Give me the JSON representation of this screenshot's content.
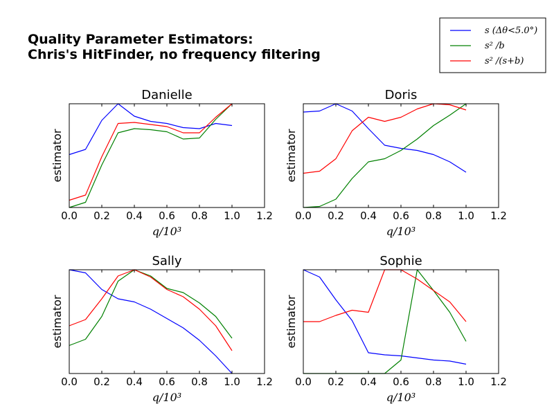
{
  "figure": {
    "title_line1": "Quality Parameter Estimators:",
    "title_line2": "Chris's HitFinder, no frequency filtering"
  },
  "legend": {
    "placement": "top-right",
    "entries": [
      {
        "label": "s (Δθ<5.0°)",
        "color": "#0000ff"
      },
      {
        "label": "s² /b",
        "color": "#008000"
      },
      {
        "label": "s² /(s+b)",
        "color": "#ff0000"
      }
    ]
  },
  "chart_data": [
    {
      "type": "line",
      "title": "Danielle",
      "xlabel": "q/10³",
      "ylabel": "estimator",
      "xlim": [
        0.0,
        1.2
      ],
      "ylim": [
        0,
        1
      ],
      "xticks": [
        "0.0",
        "0.2",
        "0.4",
        "0.6",
        "0.8",
        "1.0",
        "1.2"
      ],
      "grid": false,
      "x": [
        0.0,
        0.1,
        0.2,
        0.3,
        0.4,
        0.5,
        0.6,
        0.7,
        0.8,
        0.9,
        1.0
      ],
      "series": [
        {
          "color": "#0000ff",
          "values": [
            0.51,
            0.56,
            0.84,
            1.0,
            0.88,
            0.83,
            0.81,
            0.77,
            0.76,
            0.81,
            0.79
          ]
        },
        {
          "color": "#008000",
          "values": [
            0.0,
            0.05,
            0.41,
            0.72,
            0.76,
            0.75,
            0.73,
            0.66,
            0.67,
            0.85,
            1.0
          ]
        },
        {
          "color": "#ff0000",
          "values": [
            0.07,
            0.12,
            0.49,
            0.81,
            0.82,
            0.8,
            0.78,
            0.72,
            0.72,
            0.87,
            1.0
          ]
        }
      ]
    },
    {
      "type": "line",
      "title": "Doris",
      "xlabel": "q/10³",
      "ylabel": "estimator",
      "xlim": [
        0.0,
        1.2
      ],
      "ylim": [
        0,
        1
      ],
      "xticks": [
        "0.0",
        "0.2",
        "0.4",
        "0.6",
        "0.8",
        "1.0",
        "1.2"
      ],
      "grid": false,
      "x": [
        0.0,
        0.1,
        0.2,
        0.3,
        0.4,
        0.5,
        0.6,
        0.7,
        0.8,
        0.9,
        1.0
      ],
      "series": [
        {
          "color": "#0000ff",
          "values": [
            0.92,
            0.93,
            1.0,
            0.93,
            0.76,
            0.6,
            0.57,
            0.55,
            0.51,
            0.44,
            0.34
          ]
        },
        {
          "color": "#008000",
          "values": [
            0.0,
            0.01,
            0.08,
            0.28,
            0.44,
            0.47,
            0.55,
            0.66,
            0.79,
            0.89,
            1.0
          ]
        },
        {
          "color": "#ff0000",
          "values": [
            0.33,
            0.35,
            0.47,
            0.74,
            0.87,
            0.83,
            0.87,
            0.95,
            1.0,
            0.99,
            0.94
          ]
        }
      ]
    },
    {
      "type": "line",
      "title": "Sally",
      "xlabel": "q/10³",
      "ylabel": "estimator",
      "xlim": [
        0.0,
        1.2
      ],
      "ylim": [
        0,
        1
      ],
      "xticks": [
        "0.0",
        "0.2",
        "0.4",
        "0.6",
        "0.8",
        "1.0",
        "1.2"
      ],
      "grid": false,
      "x": [
        0.0,
        0.1,
        0.2,
        0.3,
        0.4,
        0.5,
        0.6,
        0.7,
        0.8,
        0.9,
        1.0
      ],
      "series": [
        {
          "color": "#0000ff",
          "values": [
            1.0,
            0.97,
            0.81,
            0.72,
            0.69,
            0.62,
            0.53,
            0.44,
            0.32,
            0.17,
            0.0
          ]
        },
        {
          "color": "#008000",
          "values": [
            0.27,
            0.33,
            0.55,
            0.89,
            1.0,
            0.94,
            0.82,
            0.78,
            0.68,
            0.55,
            0.34
          ]
        },
        {
          "color": "#ff0000",
          "values": [
            0.46,
            0.52,
            0.72,
            0.94,
            1.0,
            0.93,
            0.81,
            0.74,
            0.62,
            0.46,
            0.22
          ]
        }
      ]
    },
    {
      "type": "line",
      "title": "Sophie",
      "xlabel": "q/10³",
      "ylabel": "estimator",
      "xlim": [
        0.0,
        1.2
      ],
      "ylim": [
        0,
        1
      ],
      "xticks": [
        "0.0",
        "0.2",
        "0.4",
        "0.6",
        "0.8",
        "1.0",
        "1.2"
      ],
      "grid": false,
      "x": [
        0.0,
        0.1,
        0.2,
        0.3,
        0.4,
        0.5,
        0.6,
        0.7,
        0.8,
        0.9,
        1.0
      ],
      "series": [
        {
          "color": "#0000ff",
          "values": [
            1.0,
            0.93,
            0.71,
            0.51,
            0.2,
            0.18,
            0.17,
            0.15,
            0.13,
            0.12,
            0.09
          ]
        },
        {
          "color": "#008000",
          "values": [
            0.0,
            0.0,
            0.0,
            0.0,
            0.0,
            0.0,
            0.13,
            1.0,
            0.8,
            0.59,
            0.31
          ]
        },
        {
          "color": "#ff0000",
          "values": [
            0.5,
            0.5,
            0.56,
            0.61,
            0.59,
            1.0,
            1.0,
            0.91,
            0.8,
            0.69,
            0.5
          ]
        }
      ]
    }
  ]
}
